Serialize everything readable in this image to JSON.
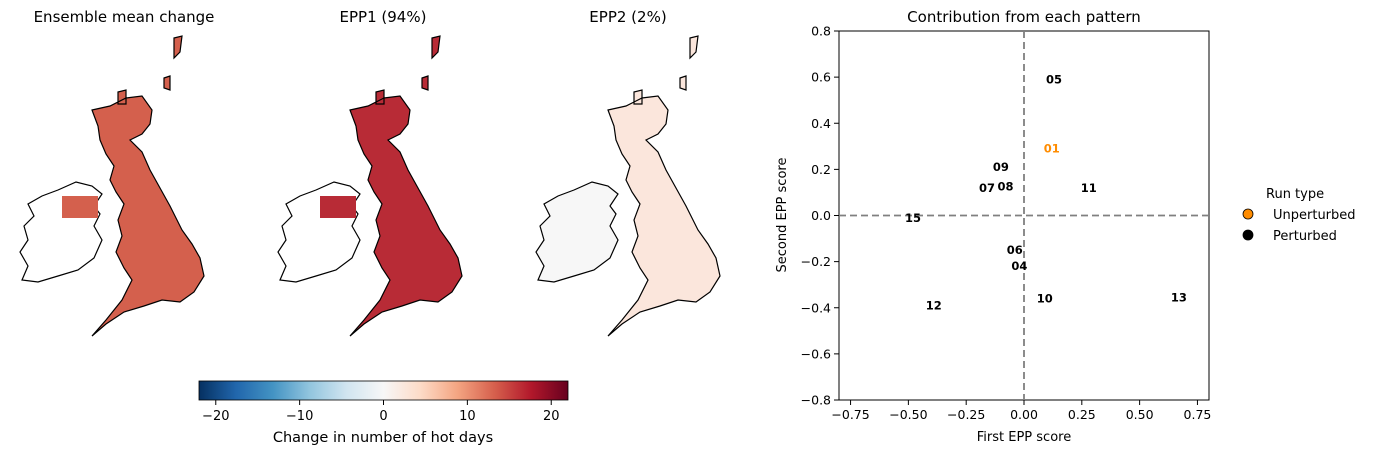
{
  "maps": [
    {
      "title": "Ensemble mean change",
      "fill": "#d4604d"
    },
    {
      "title": "EPP1 (94%)",
      "fill": "#b82b36"
    },
    {
      "title": "EPP2 (2%)",
      "fill": "#fbe6dc"
    }
  ],
  "colorbar": {
    "label": "Change in number of hot days",
    "ticks": [
      -20,
      -10,
      0,
      10,
      20
    ],
    "tick_labels": [
      "−20",
      "−10",
      "0",
      "10",
      "20"
    ],
    "range": [
      -22,
      22
    ],
    "cmap": "RdBu_r"
  },
  "chart_data": {
    "type": "scatter",
    "title": "Contribution from each pattern",
    "xlabel": "First EPP score",
    "ylabel": "Second EPP score",
    "xlim": [
      -0.8,
      0.8
    ],
    "ylim": [
      -0.8,
      0.8
    ],
    "xticks": [
      -0.75,
      -0.5,
      -0.25,
      0.0,
      0.25,
      0.5,
      0.75
    ],
    "xtick_labels": [
      "−0.75",
      "−0.50",
      "−0.25",
      "0.00",
      "0.25",
      "0.50",
      "0.75"
    ],
    "yticks": [
      -0.8,
      -0.6,
      -0.4,
      -0.2,
      0.0,
      0.2,
      0.4,
      0.6,
      0.8
    ],
    "ytick_labels": [
      "−0.8",
      "−0.6",
      "−0.4",
      "−0.2",
      "0.0",
      "0.2",
      "0.4",
      "0.6",
      "0.8"
    ],
    "reference_lines": {
      "x": 0,
      "y": 0,
      "style": "dashed"
    },
    "points": [
      {
        "label": "01",
        "x": 0.12,
        "y": 0.29,
        "run_type": "Unperturbed"
      },
      {
        "label": "05",
        "x": 0.13,
        "y": 0.59,
        "run_type": "Perturbed"
      },
      {
        "label": "09",
        "x": -0.1,
        "y": 0.21,
        "run_type": "Perturbed"
      },
      {
        "label": "07",
        "x": -0.16,
        "y": 0.12,
        "run_type": "Perturbed"
      },
      {
        "label": "08",
        "x": -0.08,
        "y": 0.125,
        "run_type": "Perturbed"
      },
      {
        "label": "11",
        "x": 0.28,
        "y": 0.12,
        "run_type": "Perturbed"
      },
      {
        "label": "15",
        "x": -0.48,
        "y": -0.01,
        "run_type": "Perturbed"
      },
      {
        "label": "06",
        "x": -0.04,
        "y": -0.15,
        "run_type": "Perturbed"
      },
      {
        "label": "04",
        "x": -0.02,
        "y": -0.22,
        "run_type": "Perturbed"
      },
      {
        "label": "10",
        "x": 0.09,
        "y": -0.36,
        "run_type": "Perturbed"
      },
      {
        "label": "12",
        "x": -0.39,
        "y": -0.39,
        "run_type": "Perturbed"
      },
      {
        "label": "13",
        "x": 0.67,
        "y": -0.355,
        "run_type": "Perturbed"
      }
    ],
    "legend": {
      "title": "Run type",
      "placement": "outside-right",
      "entries": [
        {
          "label": "Unperturbed",
          "color": "#ff8c00"
        },
        {
          "label": "Perturbed",
          "color": "#000000"
        }
      ]
    }
  }
}
